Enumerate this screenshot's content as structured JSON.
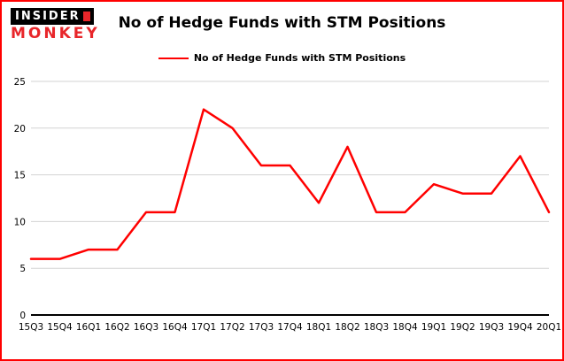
{
  "logo": {
    "line1": "INSIDER",
    "line2": "MONKEY"
  },
  "header": {
    "title": "No of Hedge Funds with STM Positions"
  },
  "legend": {
    "label": "No of Hedge Funds with STM Positions"
  },
  "chart_data": {
    "type": "line",
    "title": "No of Hedge Funds with STM Positions",
    "categories": [
      "15Q3",
      "15Q4",
      "16Q1",
      "16Q2",
      "16Q3",
      "16Q4",
      "17Q1",
      "17Q2",
      "17Q3",
      "17Q4",
      "18Q1",
      "18Q2",
      "18Q3",
      "18Q4",
      "19Q1",
      "19Q2",
      "19Q3",
      "19Q4",
      "20Q1"
    ],
    "series": [
      {
        "name": "No of Hedge Funds with STM Positions",
        "values": [
          6,
          6,
          7,
          7,
          11,
          11,
          22,
          20,
          16,
          16,
          12,
          18,
          11,
          11,
          14,
          13,
          13,
          17,
          11
        ]
      }
    ],
    "xlabel": "",
    "ylabel": "",
    "ylim": [
      0,
      25
    ],
    "yticks": [
      0,
      5,
      10,
      15,
      20,
      25
    ],
    "grid": true,
    "legend_position": "top-center"
  },
  "colors": {
    "accent": "#ff0000",
    "line": "#ff0000",
    "border": "#ff0000",
    "grid": "#d3d3d3",
    "axis": "#000000",
    "logo_red": "#e8262a"
  }
}
